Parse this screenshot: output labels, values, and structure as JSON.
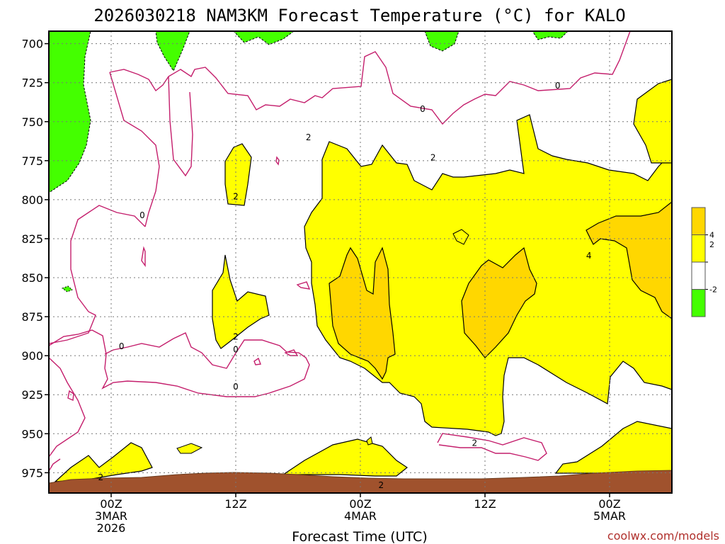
{
  "chart_data": {
    "type": "contour",
    "title": "2026030218 NAM3KM Forecast Temperature (°C) for KALO",
    "xlabel": "Forecast Time (UTC)",
    "ylabel": "",
    "credit": "coolwx.com/models",
    "y_axis": {
      "range": [
        692,
        988
      ],
      "ticks": [
        700,
        725,
        750,
        775,
        800,
        825,
        850,
        875,
        900,
        925,
        950,
        975
      ],
      "inverted": true
    },
    "x_axis": {
      "range_hours": [
        -6,
        54
      ],
      "ticks": [
        {
          "hour": 0,
          "lines": [
            "00Z",
            "3MAR",
            "2026"
          ]
        },
        {
          "hour": 12,
          "lines": [
            "12Z"
          ]
        },
        {
          "hour": 24,
          "lines": [
            "00Z",
            "4MAR"
          ]
        },
        {
          "hour": 36,
          "lines": [
            "12Z"
          ]
        },
        {
          "hour": 48,
          "lines": [
            "00Z",
            "5MAR"
          ]
        }
      ]
    },
    "grid": true,
    "legend": {
      "placement": "right",
      "bins": [
        {
          "color": "#ffd700",
          "label": "4"
        },
        {
          "color": "#ffff00",
          "label": "2"
        },
        {
          "color": "#ffffff",
          "label": "-2"
        },
        {
          "color": "#44ff00",
          "label": ""
        }
      ]
    },
    "contour_labels": [
      {
        "text": "0",
        "hour": 3,
        "p": 810
      },
      {
        "text": "0",
        "hour": 1,
        "p": 894
      },
      {
        "text": "0",
        "hour": 12,
        "p": 896
      },
      {
        "text": "0",
        "hour": 12,
        "p": 920
      },
      {
        "text": "0",
        "hour": 30,
        "p": 742
      },
      {
        "text": "0",
        "hour": 43,
        "p": 727
      },
      {
        "text": "2",
        "hour": 12,
        "p": 798
      },
      {
        "text": "2",
        "hour": 19,
        "p": 760
      },
      {
        "text": "2",
        "hour": 12,
        "p": 888
      },
      {
        "text": "2",
        "hour": 31,
        "p": 773
      },
      {
        "text": "2",
        "hour": 35,
        "p": 956
      },
      {
        "text": "2",
        "hour": -1,
        "p": 978
      },
      {
        "text": "2",
        "hour": 26,
        "p": 983
      },
      {
        "text": "4",
        "hour": 46,
        "p": 836
      }
    ],
    "fill_colors": {
      "warm": "#ffd700",
      "mild": "#ffff00",
      "cold": "#44ff00",
      "ground": "#a0522d"
    },
    "line_colors": {
      "zero": "#c41e6c",
      "positive": "#000000"
    }
  }
}
